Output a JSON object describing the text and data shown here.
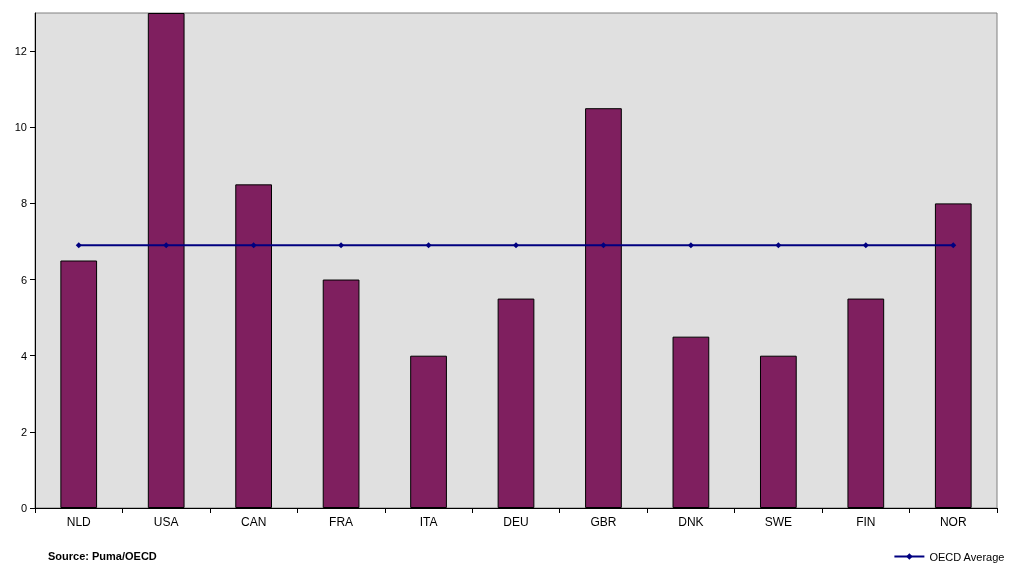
{
  "chart_data": {
    "type": "bar",
    "categories": [
      "NLD",
      "USA",
      "CAN",
      "FRA",
      "ITA",
      "DEU",
      "GBR",
      "DNK",
      "SWE",
      "FIN",
      "NOR"
    ],
    "series": [
      {
        "color": "#7f1f5f",
        "values": [
          6.5,
          13,
          8.5,
          6,
          4,
          5.5,
          10.5,
          4.5,
          4,
          5.5,
          8
        ]
      },
      {
        "type": "line",
        "name": "OECD Average",
        "color": "#000080",
        "marker": "diamond",
        "values": [
          6.9,
          6.9,
          6.9,
          6.9,
          6.9,
          6.9,
          6.9,
          6.9,
          6.9,
          6.9,
          6.9
        ]
      }
    ],
    "ylim": [
      0,
      13
    ],
    "yticks": [
      0,
      2,
      4,
      6,
      8,
      10,
      12
    ],
    "grid": false,
    "legend": "bottom right",
    "annotations": [
      "Source: Puma/OECD"
    ]
  }
}
